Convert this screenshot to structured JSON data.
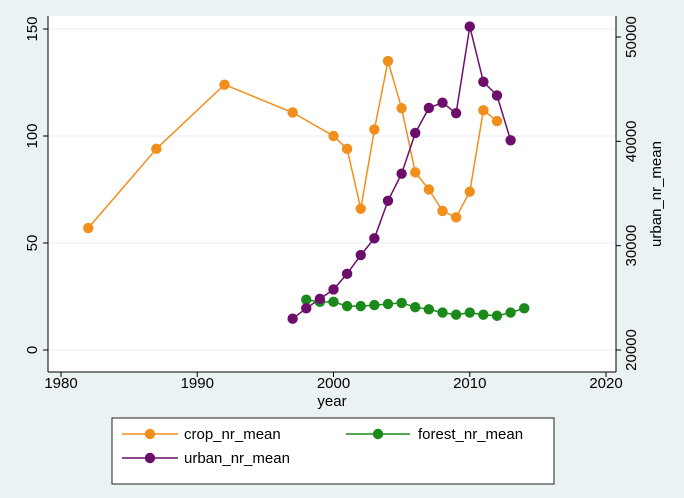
{
  "chart_data": {
    "type": "line",
    "xlabel": "year",
    "ylabel_right": "urban_nr_mean",
    "xlim": [
      1980,
      2020
    ],
    "ylim_left": [
      0,
      150
    ],
    "ylim_right": [
      20000,
      52000
    ],
    "xticks": [
      1980,
      1990,
      2000,
      2010,
      2020
    ],
    "yticks_left": [
      0,
      50,
      100,
      150
    ],
    "yticks_right": [
      20000,
      30000,
      40000,
      50000
    ],
    "grid": true,
    "legend_position": "bottom",
    "series": [
      {
        "name": "crop_nr_mean",
        "axis": "left",
        "color": "#f28e1c",
        "x": [
          1982,
          1987,
          1992,
          1997,
          2000,
          2001,
          2002,
          2003,
          2004,
          2005,
          2006,
          2007,
          2008,
          2009,
          2010,
          2011,
          2012
        ],
        "y": [
          57,
          94,
          124,
          111,
          100,
          94,
          66,
          103,
          135,
          113,
          83,
          75,
          65,
          62,
          74,
          112,
          107
        ]
      },
      {
        "name": "forest_nr_mean",
        "axis": "left",
        "color": "#1a8a1a",
        "x": [
          1998,
          1999,
          2000,
          2001,
          2002,
          2003,
          2004,
          2005,
          2006,
          2007,
          2008,
          2009,
          2010,
          2011,
          2012,
          2013,
          2014
        ],
        "y": [
          23.5,
          22.5,
          22.5,
          20.5,
          20.5,
          21,
          21.5,
          22,
          20,
          19,
          17.5,
          16.5,
          17.5,
          16.5,
          16,
          17.5,
          19.5
        ]
      },
      {
        "name": "urban_nr_mean",
        "axis": "right",
        "color": "#6b0f6b",
        "x": [
          1997,
          1998,
          1999,
          2000,
          2001,
          2002,
          2003,
          2004,
          2005,
          2006,
          2007,
          2008,
          2009,
          2010,
          2011,
          2012,
          2013
        ],
        "y": [
          23000,
          24000,
          24900,
          25800,
          27300,
          29100,
          30700,
          34300,
          36900,
          40800,
          43200,
          43700,
          42700,
          51000,
          45700,
          44400,
          40100
        ]
      }
    ]
  }
}
